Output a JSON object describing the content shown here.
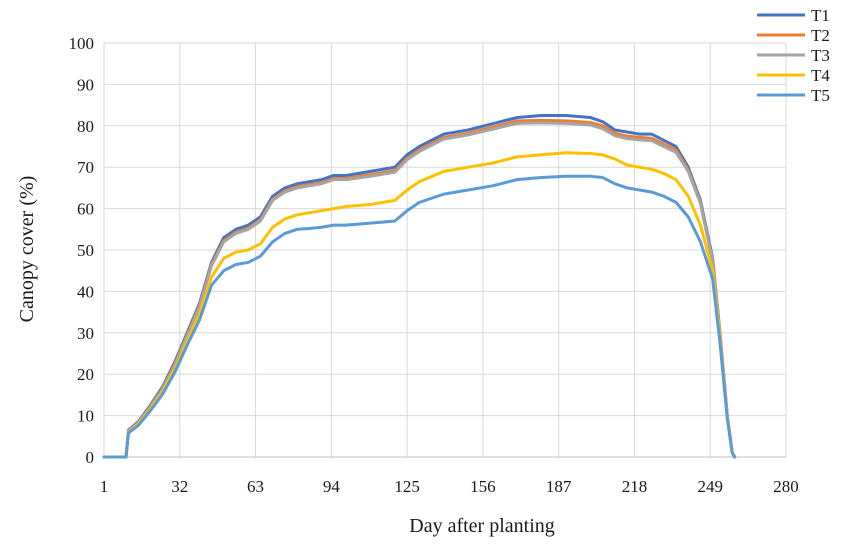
{
  "chart_data": {
    "type": "line",
    "xlabel": "Day after planting",
    "ylabel": "Canopy cover (%)",
    "xlim": [
      1,
      280
    ],
    "ylim": [
      0,
      100
    ],
    "x_ticks": [
      "1",
      "32",
      "63",
      "94",
      "125",
      "156",
      "187",
      "218",
      "249",
      "280"
    ],
    "y_ticks": [
      "0",
      "10",
      "20",
      "30",
      "40",
      "50",
      "60",
      "70",
      "80",
      "90",
      "100"
    ],
    "grid": true,
    "legend_position": "top-right",
    "x": [
      1,
      5,
      10,
      11,
      15,
      20,
      25,
      30,
      35,
      40,
      45,
      50,
      55,
      60,
      65,
      70,
      75,
      80,
      85,
      90,
      95,
      100,
      110,
      120,
      125,
      130,
      140,
      150,
      160,
      170,
      180,
      190,
      200,
      205,
      210,
      215,
      220,
      225,
      230,
      235,
      240,
      245,
      250,
      253,
      256,
      258,
      259
    ],
    "series": [
      {
        "name": "T1",
        "color": "#4472C4",
        "values": [
          0,
          0,
          0,
          6.5,
          8.5,
          12.5,
          17,
          23,
          30,
          37,
          47,
          53,
          55,
          56,
          58,
          63,
          65,
          66,
          66.5,
          67,
          68,
          68,
          69,
          70,
          73,
          75,
          78,
          79,
          80.5,
          82,
          82.5,
          82.5,
          82,
          81,
          79,
          78.5,
          78,
          78,
          76.5,
          75,
          70,
          62,
          48,
          30,
          10,
          1,
          0
        ]
      },
      {
        "name": "T2",
        "color": "#ED7D31",
        "values": [
          0,
          0,
          0,
          6.3,
          8.3,
          12.2,
          16.6,
          22.5,
          29.5,
          36.5,
          46.5,
          52.3,
          54.3,
          55.3,
          57.3,
          62.3,
          64.3,
          65.3,
          65.8,
          66.3,
          67.3,
          67.3,
          68.2,
          69.2,
          72.2,
          74.2,
          77.2,
          78.2,
          79.7,
          81.2,
          81.3,
          81.2,
          80.8,
          80,
          78.2,
          77.5,
          77.2,
          77,
          75.6,
          74.2,
          69.4,
          61.5,
          47.5,
          29.7,
          9.8,
          1,
          0
        ]
      },
      {
        "name": "T3",
        "color": "#A5A5A5",
        "values": [
          0,
          0,
          0,
          6.2,
          8.2,
          12,
          16.4,
          22.2,
          29.2,
          36.2,
          46.2,
          52,
          54,
          55,
          57,
          62,
          64,
          65,
          65.5,
          66,
          67,
          67,
          67.8,
          68.8,
          71.8,
          73.8,
          76.8,
          77.8,
          79.2,
          80.6,
          80.7,
          80.6,
          80.2,
          79.3,
          77.6,
          76.9,
          76.6,
          76.4,
          75,
          73.6,
          69,
          61.2,
          47.2,
          29.5,
          9.7,
          1,
          0
        ]
      },
      {
        "name": "T4",
        "color": "#FFC000",
        "values": [
          0,
          0,
          0,
          6,
          7.9,
          11.6,
          15.8,
          21.3,
          28,
          34.5,
          43.5,
          48,
          49.5,
          50,
          51.5,
          55.5,
          57.5,
          58.5,
          59,
          59.5,
          60,
          60.5,
          61,
          62,
          64.5,
          66.5,
          69,
          70,
          71,
          72.5,
          73,
          73.5,
          73.3,
          73,
          72,
          70.5,
          70,
          69.5,
          68.5,
          67,
          63,
          56,
          45,
          28.5,
          9.5,
          1,
          0
        ]
      },
      {
        "name": "T5",
        "color": "#5B9BD5",
        "values": [
          0,
          0,
          0,
          5.8,
          7.6,
          11.2,
          15.2,
          20.5,
          27,
          33,
          41.5,
          45,
          46.5,
          47,
          48.5,
          52,
          54,
          55,
          55.2,
          55.5,
          56,
          56,
          56.5,
          57,
          59.5,
          61.5,
          63.5,
          64.5,
          65.5,
          67,
          67.5,
          67.8,
          67.8,
          67.5,
          66,
          65,
          64.5,
          64,
          63,
          61.5,
          58,
          52,
          43,
          27.5,
          9.2,
          1,
          0
        ]
      }
    ]
  }
}
